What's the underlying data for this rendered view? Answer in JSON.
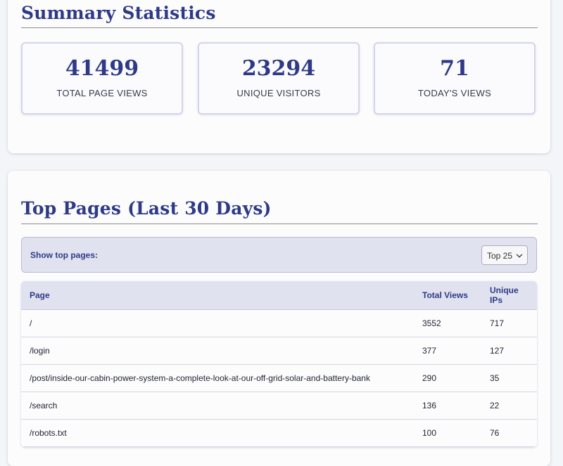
{
  "summary": {
    "title": "Summary Statistics",
    "stats": [
      {
        "value": "41499",
        "label": "TOTAL PAGE VIEWS"
      },
      {
        "value": "23294",
        "label": "UNIQUE VISITORS"
      },
      {
        "value": "71",
        "label": "TODAY'S VIEWS"
      }
    ]
  },
  "top_pages": {
    "title": "Top Pages (Last 30 Days)",
    "filter_label": "Show top pages:",
    "select_value": "Top 25",
    "columns": [
      "Page",
      "Total Views",
      "Unique IPs"
    ],
    "rows": [
      [
        "/",
        "3552",
        "717"
      ],
      [
        "/login",
        "377",
        "127"
      ],
      [
        "/post/inside-our-cabin-power-system-a-complete-look-at-our-off-grid-solar-and-battery-bank",
        "290",
        "35"
      ],
      [
        "/search",
        "136",
        "22"
      ],
      [
        "/robots.txt",
        "100",
        "76"
      ]
    ]
  },
  "colors": {
    "accent": "#2e3a87",
    "header_bg": "#e0e2ef",
    "page_bg": "#f4f5f8"
  },
  "icons": {
    "select_chevron": "chevron-down-icon"
  }
}
